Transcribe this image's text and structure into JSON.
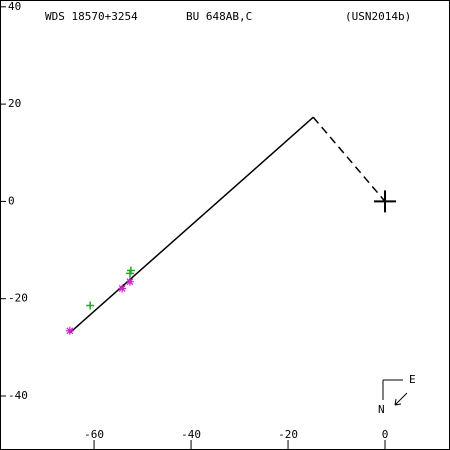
{
  "chart_data": {
    "type": "scatter",
    "title": "WDS 18570+3254",
    "subtitle": "BU  648AB,C",
    "reference": "(USN2014b)",
    "xlim": [
      -79.4,
      13.4
    ],
    "ylim": [
      -51.1,
      41.4
    ],
    "xticks": [
      -60,
      -40,
      -20,
      0
    ],
    "yticks": [
      40,
      20,
      0,
      -20,
      -40
    ],
    "series": [
      {
        "kind": "line",
        "color": "#000000",
        "style": "solid",
        "x": [
          -65,
          -14.8
        ],
        "values": [
          -27,
          17.3
        ]
      },
      {
        "kind": "line",
        "color": "#000000",
        "style": "dashed",
        "x": [
          -14.8,
          0
        ],
        "values": [
          17.3,
          0
        ]
      },
      {
        "kind": "plus",
        "color": "#22aa22",
        "x": [
          -52.4,
          -52.6,
          -60.8
        ],
        "values": [
          -14.2,
          -14.8,
          -21.4
        ]
      },
      {
        "kind": "star",
        "color": "#cc22cc",
        "x": [
          -65,
          -54.2,
          -52.6
        ],
        "values": [
          -26.6,
          -17.9,
          -16.5
        ]
      },
      {
        "kind": "primary",
        "color": "#000000",
        "x": [
          0
        ],
        "values": [
          0
        ]
      }
    ],
    "compass": [
      "E",
      "N"
    ]
  }
}
